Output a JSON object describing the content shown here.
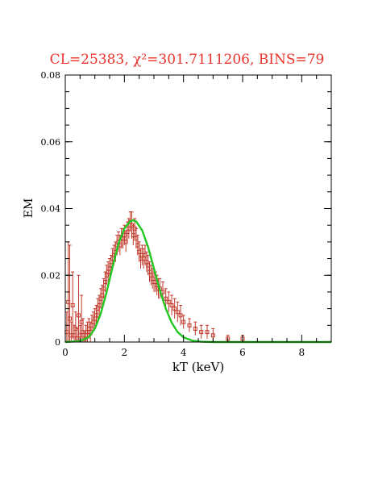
{
  "chart_data": {
    "type": "scatter",
    "title": "CL=25383, χ²=301.7111206, BINS=79",
    "xlabel": "kT (keV)",
    "ylabel": "EM",
    "xlim": [
      0,
      9
    ],
    "ylim": [
      0,
      0.08
    ],
    "xticks": [
      0,
      2,
      4,
      6,
      8
    ],
    "yticks": [
      0,
      0.02,
      0.04,
      0.06,
      0.08
    ],
    "xtick_labels": [
      "0",
      "2",
      "4",
      "6",
      "8"
    ],
    "ytick_labels": [
      "0",
      "0.02",
      "0.04",
      "0.06",
      "0.08"
    ],
    "grid": false,
    "colors": {
      "data": "#c0392b",
      "model": "#22c722",
      "title": "#e8332a",
      "axis": "#000000"
    },
    "series": [
      {
        "kind": "errorbar-points",
        "points": [
          [
            0.05,
            0.003,
            0.006
          ],
          [
            0.1,
            0.012,
            0.018
          ],
          [
            0.15,
            0.007,
            0.022
          ],
          [
            0.2,
            0.002,
            0.004
          ],
          [
            0.25,
            0.011,
            0.01
          ],
          [
            0.3,
            0.002,
            0.003
          ],
          [
            0.35,
            0.004,
            0.005
          ],
          [
            0.4,
            0.001,
            0.003
          ],
          [
            0.45,
            0.008,
            0.012
          ],
          [
            0.5,
            0.002,
            0.003
          ],
          [
            0.55,
            0.006,
            0.008
          ],
          [
            0.6,
            0.003,
            0.004
          ],
          [
            0.65,
            0.001,
            0.002
          ],
          [
            0.7,
            0.002,
            0.003
          ],
          [
            0.75,
            0.003,
            0.003
          ],
          [
            0.8,
            0.004,
            0.003
          ],
          [
            0.85,
            0.003,
            0.003
          ],
          [
            0.9,
            0.005,
            0.003
          ],
          [
            0.95,
            0.006,
            0.003
          ],
          [
            1.0,
            0.007,
            0.003
          ],
          [
            1.05,
            0.008,
            0.003
          ],
          [
            1.1,
            0.01,
            0.003
          ],
          [
            1.15,
            0.011,
            0.003
          ],
          [
            1.2,
            0.013,
            0.003
          ],
          [
            1.25,
            0.014,
            0.003
          ],
          [
            1.3,
            0.016,
            0.003
          ],
          [
            1.35,
            0.018,
            0.003
          ],
          [
            1.4,
            0.02,
            0.003
          ],
          [
            1.45,
            0.021,
            0.003
          ],
          [
            1.5,
            0.022,
            0.003
          ],
          [
            1.55,
            0.023,
            0.003
          ],
          [
            1.6,
            0.025,
            0.003
          ],
          [
            1.65,
            0.026,
            0.003
          ],
          [
            1.7,
            0.027,
            0.003
          ],
          [
            1.75,
            0.029,
            0.003
          ],
          [
            1.8,
            0.03,
            0.003
          ],
          [
            1.85,
            0.029,
            0.003
          ],
          [
            1.9,
            0.031,
            0.003
          ],
          [
            1.95,
            0.031,
            0.003
          ],
          [
            2.0,
            0.032,
            0.003
          ],
          [
            2.05,
            0.03,
            0.003
          ],
          [
            2.1,
            0.033,
            0.003
          ],
          [
            2.15,
            0.034,
            0.003
          ],
          [
            2.2,
            0.036,
            0.003
          ],
          [
            2.25,
            0.035,
            0.004
          ],
          [
            2.3,
            0.032,
            0.003
          ],
          [
            2.35,
            0.034,
            0.003
          ],
          [
            2.4,
            0.031,
            0.003
          ],
          [
            2.45,
            0.029,
            0.003
          ],
          [
            2.5,
            0.027,
            0.003
          ],
          [
            2.55,
            0.025,
            0.003
          ],
          [
            2.6,
            0.026,
            0.003
          ],
          [
            2.65,
            0.025,
            0.003
          ],
          [
            2.7,
            0.026,
            0.003
          ],
          [
            2.75,
            0.024,
            0.003
          ],
          [
            2.8,
            0.023,
            0.003
          ],
          [
            2.85,
            0.021,
            0.003
          ],
          [
            2.9,
            0.02,
            0.003
          ],
          [
            2.95,
            0.019,
            0.003
          ],
          [
            3.0,
            0.018,
            0.003
          ],
          [
            3.05,
            0.018,
            0.003
          ],
          [
            3.1,
            0.017,
            0.003
          ],
          [
            3.15,
            0.016,
            0.003
          ],
          [
            3.2,
            0.016,
            0.003
          ],
          [
            3.3,
            0.015,
            0.003
          ],
          [
            3.4,
            0.013,
            0.003
          ],
          [
            3.5,
            0.012,
            0.003
          ],
          [
            3.6,
            0.011,
            0.003
          ],
          [
            3.7,
            0.01,
            0.003
          ],
          [
            3.8,
            0.009,
            0.003
          ],
          [
            3.9,
            0.008,
            0.003
          ],
          [
            4.0,
            0.006,
            0.002
          ],
          [
            4.2,
            0.005,
            0.002
          ],
          [
            4.4,
            0.004,
            0.002
          ],
          [
            4.6,
            0.003,
            0.002
          ],
          [
            4.8,
            0.003,
            0.002
          ],
          [
            5.0,
            0.002,
            0.002
          ],
          [
            5.5,
            0.001,
            0.001
          ],
          [
            6.0,
            0.001,
            0.001
          ]
        ]
      },
      {
        "kind": "model-curve",
        "x": [
          0,
          0.5,
          0.8,
          1.0,
          1.2,
          1.4,
          1.6,
          1.8,
          2.0,
          2.2,
          2.3,
          2.4,
          2.6,
          2.8,
          3.0,
          3.2,
          3.4,
          3.6,
          3.8,
          4.0,
          4.3,
          4.6,
          5.0,
          6.0,
          9.0
        ],
        "y": [
          0,
          0.0003,
          0.0015,
          0.004,
          0.0085,
          0.015,
          0.0225,
          0.0295,
          0.034,
          0.0362,
          0.0365,
          0.0361,
          0.0335,
          0.0285,
          0.022,
          0.0155,
          0.01,
          0.0058,
          0.003,
          0.0014,
          0.0004,
          0.0001,
          0,
          0,
          0
        ]
      }
    ]
  }
}
